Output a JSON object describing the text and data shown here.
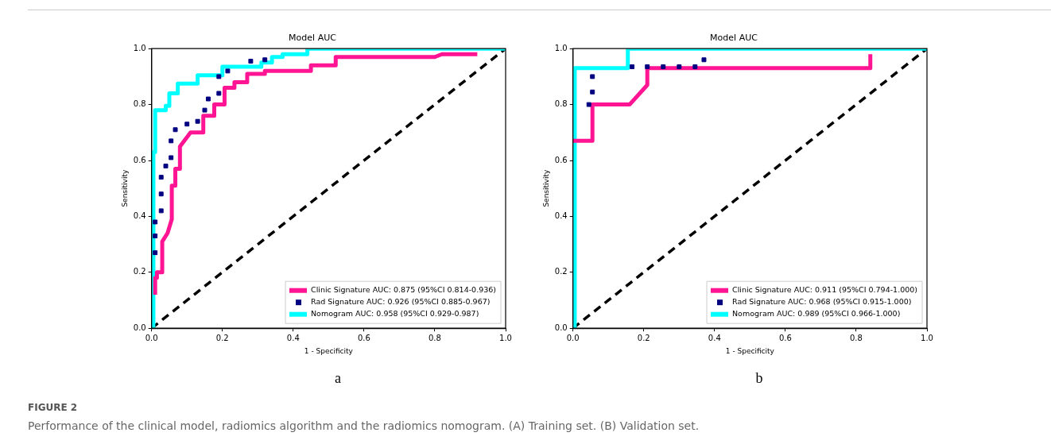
{
  "chart_data": [
    {
      "type": "line",
      "title": "Model AUC",
      "xlabel": "1 - Specificity",
      "ylabel": "Sensitivity",
      "xlim": [
        0,
        1
      ],
      "ylim": [
        0,
        1
      ],
      "xticks": [
        {
          "value": 0,
          "label": "0.0"
        },
        {
          "value": 0.2,
          "label": "0.2"
        },
        {
          "value": 0.4,
          "label": "0.4"
        },
        {
          "value": 0.6,
          "label": "0.6"
        },
        {
          "value": 0.8,
          "label": "0.8"
        },
        {
          "value": 1,
          "label": "1.0"
        }
      ],
      "yticks": [
        {
          "value": 0,
          "label": "0.0"
        },
        {
          "value": 0.2,
          "label": "0.2"
        },
        {
          "value": 0.4,
          "label": "0.4"
        },
        {
          "value": 0.6,
          "label": "0.6"
        },
        {
          "value": 0.8,
          "label": "0.8"
        },
        {
          "value": 1,
          "label": "1.0"
        }
      ],
      "grid": false,
      "legend": "bottom right",
      "annotations": [
        "a",
        "FIGURE 2",
        "Performance of the clinical model, radiomics algorithm and the radiomics nomogram. (A) Training set. (B) Validation set."
      ],
      "series": [
        {
          "name": "Clinic Signature AUC: 0.875 (95%CI 0.814-0.936)",
          "color": "#ff1493",
          "line_style": "solid",
          "x": [
            0.01,
            0.01,
            0.015,
            0.015,
            0.03,
            0.03,
            0.045,
            0.057,
            0.057,
            0.067,
            0.067,
            0.08,
            0.08,
            0.11,
            0.11,
            0.146,
            0.146,
            0.177,
            0.177,
            0.206,
            0.206,
            0.234,
            0.234,
            0.27,
            0.27,
            0.32,
            0.32,
            0.45,
            0.45,
            0.52,
            0.52,
            0.8,
            0.82,
            0.92
          ],
          "values": [
            0.12,
            0.18,
            0.18,
            0.2,
            0.2,
            0.31,
            0.34,
            0.39,
            0.51,
            0.51,
            0.57,
            0.57,
            0.65,
            0.7,
            0.7,
            0.7,
            0.76,
            0.76,
            0.8,
            0.8,
            0.86,
            0.86,
            0.88,
            0.88,
            0.91,
            0.91,
            0.92,
            0.92,
            0.94,
            0.94,
            0.97,
            0.97,
            0.98,
            0.98
          ]
        },
        {
          "name": "Rad Signature AUC: 0.926 (95%CI 0.885-0.967)",
          "color": "#000080",
          "type": "scatter",
          "marker": "square",
          "x": [
            0.01,
            0.01,
            0.01,
            0.027,
            0.027,
            0.027,
            0.04,
            0.055,
            0.055,
            0.067,
            0.1,
            0.13,
            0.15,
            0.16,
            0.19,
            0.19,
            0.215,
            0.28,
            0.32
          ],
          "values": [
            0.27,
            0.33,
            0.38,
            0.42,
            0.48,
            0.54,
            0.58,
            0.61,
            0.67,
            0.71,
            0.73,
            0.74,
            0.78,
            0.82,
            0.84,
            0.9,
            0.92,
            0.955,
            0.96
          ]
        },
        {
          "name": "Nomogram AUC: 0.958 (95%CI 0.929-0.987)",
          "color": "#00ffff",
          "type": "line",
          "line_style": "solid",
          "x": [
            0,
            0.005,
            0.005,
            0.01,
            0.01,
            0.04,
            0.04,
            0.05,
            0.05,
            0.074,
            0.074,
            0.13,
            0.13,
            0.2,
            0.2,
            0.31,
            0.31,
            0.34,
            0.34,
            0.37,
            0.37,
            0.44,
            0.44,
            1
          ],
          "values": [
            0,
            0,
            0.63,
            0.63,
            0.78,
            0.78,
            0.795,
            0.795,
            0.84,
            0.84,
            0.875,
            0.875,
            0.905,
            0.905,
            0.935,
            0.935,
            0.95,
            0.95,
            0.97,
            0.97,
            0.98,
            0.98,
            1,
            1
          ]
        },
        {
          "color": "#000000",
          "type": "line",
          "line_style": "dashed",
          "x": [
            0,
            1
          ],
          "values": [
            0,
            1
          ]
        }
      ]
    },
    {
      "type": "line",
      "title": "Model AUC",
      "xlabel": "1 - Specificity",
      "ylabel": "Sensitivity",
      "xlim": [
        0,
        1
      ],
      "ylim": [
        0,
        1
      ],
      "xticks": [
        {
          "value": 0,
          "label": "0.0"
        },
        {
          "value": 0.2,
          "label": "0.2"
        },
        {
          "value": 0.4,
          "label": "0.4"
        },
        {
          "value": 0.6,
          "label": "0.6"
        },
        {
          "value": 0.8,
          "label": "0.8"
        },
        {
          "value": 1,
          "label": "1.0"
        }
      ],
      "yticks": [
        {
          "value": 0,
          "label": "0.0"
        },
        {
          "value": 0.2,
          "label": "0.2"
        },
        {
          "value": 0.4,
          "label": "0.4"
        },
        {
          "value": 0.6,
          "label": "0.6"
        },
        {
          "value": 0.8,
          "label": "0.8"
        },
        {
          "value": 1,
          "label": "1.0"
        }
      ],
      "grid": false,
      "legend": "bottom right",
      "annotations": [
        "b"
      ],
      "series": [
        {
          "name": "Clinic Signature AUC: 0.911 (95%CI 0.794-1.000)",
          "color": "#ff1493",
          "line_style": "solid",
          "x": [
            0,
            0.055,
            0.055,
            0.16,
            0.21,
            0.21,
            0.84,
            0.84
          ],
          "values": [
            0.67,
            0.67,
            0.8,
            0.8,
            0.87,
            0.93,
            0.93,
            0.98
          ]
        },
        {
          "name": "Rad Signature AUC: 0.968 (95%CI 0.915-1.000)",
          "color": "#000080",
          "type": "scatter",
          "marker": "square",
          "x": [
            0.045,
            0.055,
            0.055,
            0.167,
            0.21,
            0.255,
            0.3,
            0.345,
            0.37
          ],
          "values": [
            0.8,
            0.845,
            0.9,
            0.935,
            0.935,
            0.935,
            0.935,
            0.935,
            0.96
          ]
        },
        {
          "name": "Nomogram AUC: 0.989 (95%CI 0.966-1.000)",
          "color": "#00ffff",
          "type": "line",
          "line_style": "solid",
          "x": [
            0,
            0.005,
            0.005,
            0.155,
            0.155,
            1
          ],
          "values": [
            0,
            0,
            0.93,
            0.93,
            1,
            1
          ]
        },
        {
          "color": "#000000",
          "type": "line",
          "line_style": "dashed",
          "x": [
            0,
            1
          ],
          "values": [
            0,
            1
          ]
        }
      ]
    }
  ]
}
